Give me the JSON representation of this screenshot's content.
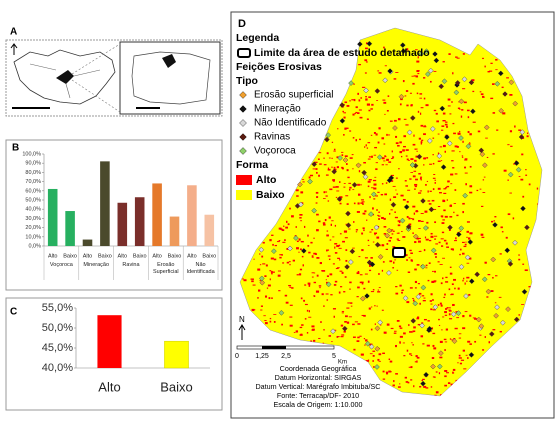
{
  "chart_data": [
    {
      "type": "bar",
      "label": "B",
      "categories": [
        "Alto",
        "Baixo",
        "Alto",
        "Baixo",
        "Alto",
        "Baixo",
        "Alto",
        "Baixo",
        "Alto",
        "Baixo"
      ],
      "groups": [
        "Voçoroca",
        "Mineração",
        "Ravina",
        "Erosão Superficial",
        "Não Identificada"
      ],
      "values": [
        62,
        38,
        7,
        92,
        47,
        53,
        68,
        32,
        66,
        34
      ],
      "colors": [
        "#27b060",
        "#27b060",
        "#4b4a2c",
        "#4b4a2c",
        "#7a2e2a",
        "#7a2e2a",
        "#e5792a",
        "#ee9a5c",
        "#f4ae8a",
        "#f6c2a4"
      ],
      "ylim": [
        0,
        100
      ],
      "yticks": [
        {
          "value": 0,
          "label": "0,0%"
        },
        {
          "value": 10,
          "label": "10,0%"
        },
        {
          "value": 20,
          "label": "20,0%"
        },
        {
          "value": 30,
          "label": "30,0%"
        },
        {
          "value": 40,
          "label": "40,0%"
        },
        {
          "value": 50,
          "label": "50,0%"
        },
        {
          "value": 60,
          "label": "60,0%"
        },
        {
          "value": 70,
          "label": "70,0%"
        },
        {
          "value": 80,
          "label": "80,0%"
        },
        {
          "value": 90,
          "label": "90,0%"
        },
        {
          "value": 100,
          "label": "100,0%"
        }
      ],
      "grid": false
    },
    {
      "type": "bar",
      "label": "C",
      "categories": [
        "Alto",
        "Baixo"
      ],
      "values": [
        53.2,
        46.7
      ],
      "colors": [
        "#ff0000",
        "#ffff00"
      ],
      "ylim": [
        40,
        55
      ],
      "yticks": [
        {
          "value": 40,
          "label": "40,0%"
        },
        {
          "value": 45,
          "label": "45,0%"
        },
        {
          "value": 50,
          "label": "50,0%"
        },
        {
          "value": 55,
          "label": "55,0%"
        }
      ],
      "grid": false
    }
  ],
  "locator": {
    "label": "A"
  },
  "map": {
    "label": "D",
    "legend_title": "Legenda",
    "boundary": "Limite da área de estudo detalhado",
    "features_title": "Feições Erosivas",
    "type_title": "Tipo",
    "types": [
      {
        "name": "Erosão superficial",
        "color": "#f0a030"
      },
      {
        "name": "Mineração",
        "color": "#111111"
      },
      {
        "name": "Não Identificado",
        "color": "#d8d8d8"
      },
      {
        "name": "Ravinas",
        "color": "#5a1a10"
      },
      {
        "name": "Voçoroca",
        "color": "#8fd06a"
      }
    ],
    "form_title": "Forma",
    "forms": [
      {
        "name": "Alto",
        "color": "#ff0000"
      },
      {
        "name": "Baixo",
        "color": "#ffff00"
      }
    ],
    "north": "N",
    "scale_labels": [
      "0",
      "1,25",
      "2,5",
      "5"
    ],
    "scale_unit": "Km",
    "footer": [
      "Coordenada Geográfica",
      "Datum Horizontal: SIRGAS",
      "Datum Vertical: Marégrafo Imbituba/SC",
      "Fonte: Terracap/DF- 2010",
      "Escala de Origem: 1:10.000"
    ]
  }
}
